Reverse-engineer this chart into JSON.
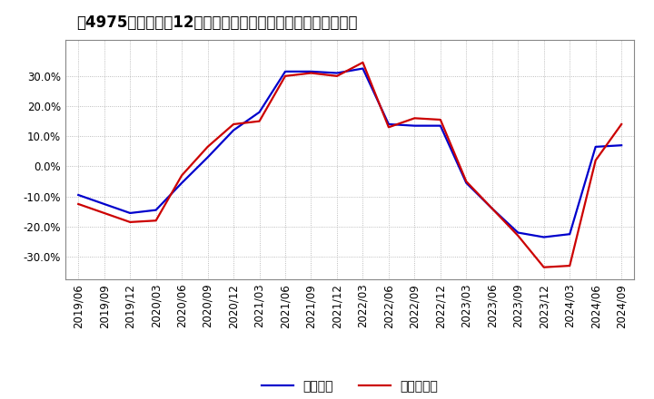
{
  "title": "［4975］　利益の12か月移動合計の対前年同期増減率の推移",
  "legend_labels": [
    "経常利益",
    "当期純利益"
  ],
  "line_colors": [
    "#0000cc",
    "#cc0000"
  ],
  "background_color": "#ffffff",
  "plot_bg_color": "#ffffff",
  "grid_color": "#aaaaaa",
  "ylim": [
    -0.375,
    0.42
  ],
  "yticks": [
    -0.3,
    -0.2,
    -0.1,
    0.0,
    0.1,
    0.2,
    0.3
  ],
  "ytick_labels": [
    "-30.0%",
    "-20.0%",
    "-10.0%",
    "0.0%",
    "10.0%",
    "20.0%",
    "30.0%"
  ],
  "dates": [
    "2019/06",
    "2019/09",
    "2019/12",
    "2020/03",
    "2020/06",
    "2020/09",
    "2020/12",
    "2021/03",
    "2021/06",
    "2021/09",
    "2021/12",
    "2022/03",
    "2022/06",
    "2022/09",
    "2022/12",
    "2023/03",
    "2023/06",
    "2023/09",
    "2023/12",
    "2024/03",
    "2024/06",
    "2024/09"
  ],
  "ordinary_profit": [
    -0.095,
    -0.125,
    -0.155,
    -0.145,
    -0.055,
    0.03,
    0.12,
    0.18,
    0.315,
    0.315,
    0.31,
    0.325,
    0.14,
    0.135,
    0.135,
    -0.055,
    -0.14,
    -0.22,
    -0.235,
    -0.225,
    0.065,
    0.07
  ],
  "net_profit": [
    -0.125,
    -0.155,
    -0.185,
    -0.18,
    -0.03,
    0.065,
    0.14,
    0.15,
    0.3,
    0.31,
    0.3,
    0.345,
    0.13,
    0.16,
    0.155,
    -0.05,
    -0.14,
    -0.23,
    -0.335,
    -0.33,
    0.02,
    0.14
  ],
  "title_fontsize": 12,
  "tick_fontsize": 8.5,
  "legend_fontsize": 10,
  "line_width": 1.6
}
